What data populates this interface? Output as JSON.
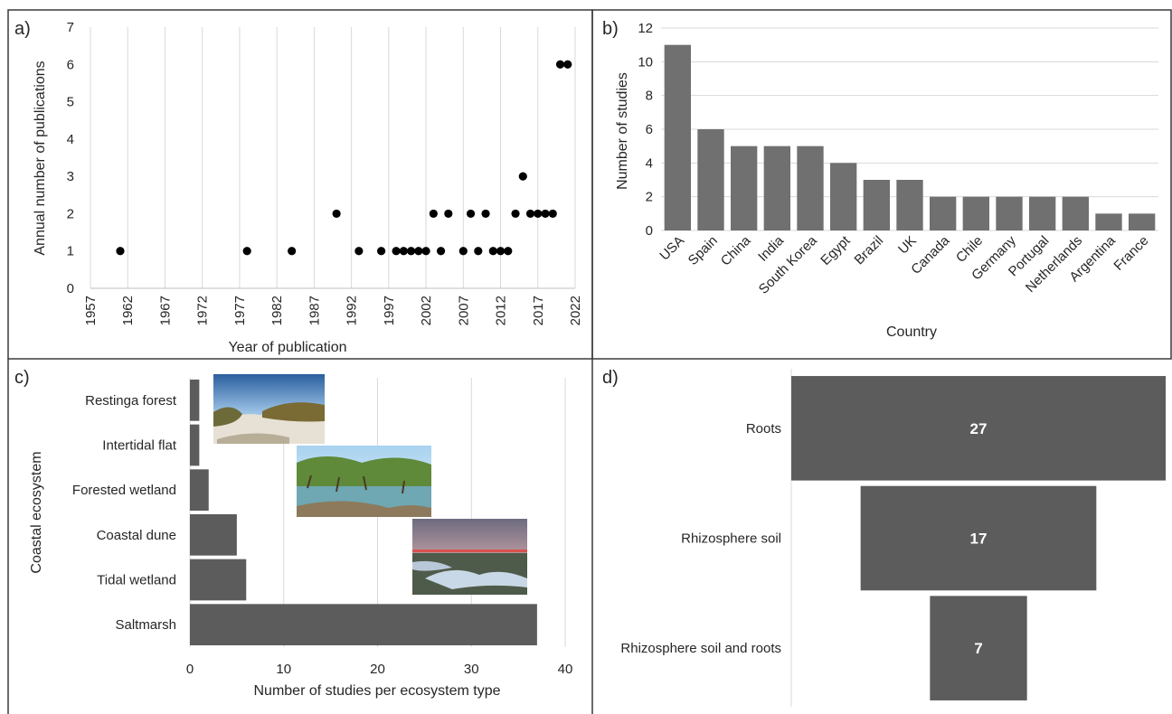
{
  "colors": {
    "bar": "#707070",
    "funnel": "#5c5c5c",
    "dot": "#000000",
    "grid": "#d9d9d9",
    "frame": "#3a3a3a"
  },
  "panels": {
    "a": "a)",
    "b": "b)",
    "c": "c)",
    "d": "d)"
  },
  "chart_data": [
    {
      "id": "a",
      "type": "scatter",
      "xlabel": "Year of publication",
      "ylabel": "Annual number of publications",
      "xlim": [
        1957,
        2022
      ],
      "ylim": [
        0,
        7
      ],
      "xticks": [
        "1957",
        "1962",
        "1967",
        "1972",
        "1977",
        "1982",
        "1987",
        "1992",
        "1997",
        "2002",
        "2007",
        "2012",
        "2017",
        "2022"
      ],
      "yticks": [
        "0",
        "1",
        "2",
        "3",
        "4",
        "5",
        "6",
        "7"
      ],
      "grid": "vertical",
      "points": [
        {
          "x": 1961,
          "y": 1
        },
        {
          "x": 1978,
          "y": 1
        },
        {
          "x": 1984,
          "y": 1
        },
        {
          "x": 1990,
          "y": 2
        },
        {
          "x": 1993,
          "y": 1
        },
        {
          "x": 1996,
          "y": 1
        },
        {
          "x": 1998,
          "y": 1
        },
        {
          "x": 1999,
          "y": 1
        },
        {
          "x": 2000,
          "y": 1
        },
        {
          "x": 2001,
          "y": 1
        },
        {
          "x": 2002,
          "y": 1
        },
        {
          "x": 2003,
          "y": 2
        },
        {
          "x": 2004,
          "y": 1
        },
        {
          "x": 2005,
          "y": 2
        },
        {
          "x": 2007,
          "y": 1
        },
        {
          "x": 2008,
          "y": 2
        },
        {
          "x": 2009,
          "y": 1
        },
        {
          "x": 2010,
          "y": 2
        },
        {
          "x": 2011,
          "y": 1
        },
        {
          "x": 2012,
          "y": 1
        },
        {
          "x": 2013,
          "y": 1
        },
        {
          "x": 2014,
          "y": 2
        },
        {
          "x": 2015,
          "y": 3
        },
        {
          "x": 2016,
          "y": 2
        },
        {
          "x": 2017,
          "y": 2
        },
        {
          "x": 2018,
          "y": 2
        },
        {
          "x": 2019,
          "y": 2
        },
        {
          "x": 2020,
          "y": 6
        },
        {
          "x": 2021,
          "y": 6
        }
      ]
    },
    {
      "id": "b",
      "type": "bar",
      "xlabel": "Country",
      "ylabel": "Number of studies",
      "ylim": [
        0,
        12
      ],
      "yticks": [
        "0",
        "2",
        "4",
        "6",
        "8",
        "10",
        "12"
      ],
      "grid": "horizontal",
      "categories": [
        "USA",
        "Spain",
        "China",
        "India",
        "South Korea",
        "Egypt",
        "Brazil",
        "UK",
        "Canada",
        "Chile",
        "Germany",
        "Portugal",
        "Netherlands",
        "Argentina",
        "France"
      ],
      "values": [
        11,
        6,
        5,
        5,
        5,
        4,
        3,
        3,
        2,
        2,
        2,
        2,
        2,
        1,
        1
      ]
    },
    {
      "id": "c",
      "type": "bar",
      "orientation": "horizontal",
      "xlabel": "Number of studies per ecosystem type",
      "ylabel": "Coastal ecosystem",
      "xlim": [
        0,
        40
      ],
      "xticks": [
        "0",
        "10",
        "20",
        "30",
        "40"
      ],
      "grid": "vertical",
      "categories": [
        "Restinga forest",
        "Intertidal flat",
        "Forested wetland",
        "Coastal dune",
        "Tidal wetland",
        "Saltmarsh"
      ],
      "values": [
        1,
        1,
        2,
        5,
        6,
        37
      ]
    },
    {
      "id": "d",
      "type": "bar",
      "orientation": "funnel",
      "categories": [
        "Roots",
        "Rhizosphere soil",
        "Rhizosphere soil and roots"
      ],
      "values": [
        27,
        17,
        7
      ],
      "data_labels": [
        "27",
        "17",
        "7"
      ]
    }
  ]
}
